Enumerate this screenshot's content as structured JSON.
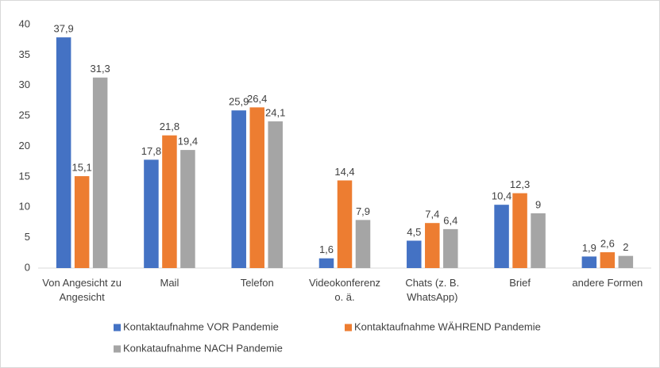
{
  "chart_data": {
    "type": "bar",
    "categories": [
      "Von Angesicht zu Angesicht",
      "Mail",
      "Telefon",
      "Videokonferenz o. ä.",
      "Chats (z. B. WhatsApp)",
      "Brief",
      "andere Formen"
    ],
    "series": [
      {
        "name": "Kontaktaufnahme VOR Pandemie",
        "color": "#4472c4",
        "values": [
          37.9,
          17.8,
          25.9,
          1.6,
          4.5,
          10.4,
          1.9
        ],
        "value_labels": [
          "37,9",
          "17,8",
          "25,9",
          "1,6",
          "4,5",
          "10,4",
          "1,9"
        ]
      },
      {
        "name": "Kontaktaufnahme WÄHREND Pandemie",
        "color": "#ed7d31",
        "values": [
          15.1,
          21.8,
          26.4,
          14.4,
          7.4,
          12.3,
          2.6
        ],
        "value_labels": [
          "15,1",
          "21,8",
          "26,4",
          "14,4",
          "7,4",
          "12,3",
          "2,6"
        ]
      },
      {
        "name": "Konkataufnahme NACH Pandemie",
        "color": "#a5a5a5",
        "values": [
          31.3,
          19.4,
          24.1,
          7.9,
          6.4,
          9,
          2
        ],
        "value_labels": [
          "31,3",
          "19,4",
          "24,1",
          "7,9",
          "6,4",
          "9",
          "2"
        ]
      }
    ],
    "ylim": [
      0,
      40
    ],
    "yticks": [
      0,
      5,
      10,
      15,
      20,
      25,
      30,
      35,
      40
    ],
    "grid": false,
    "legend": "bottom"
  }
}
